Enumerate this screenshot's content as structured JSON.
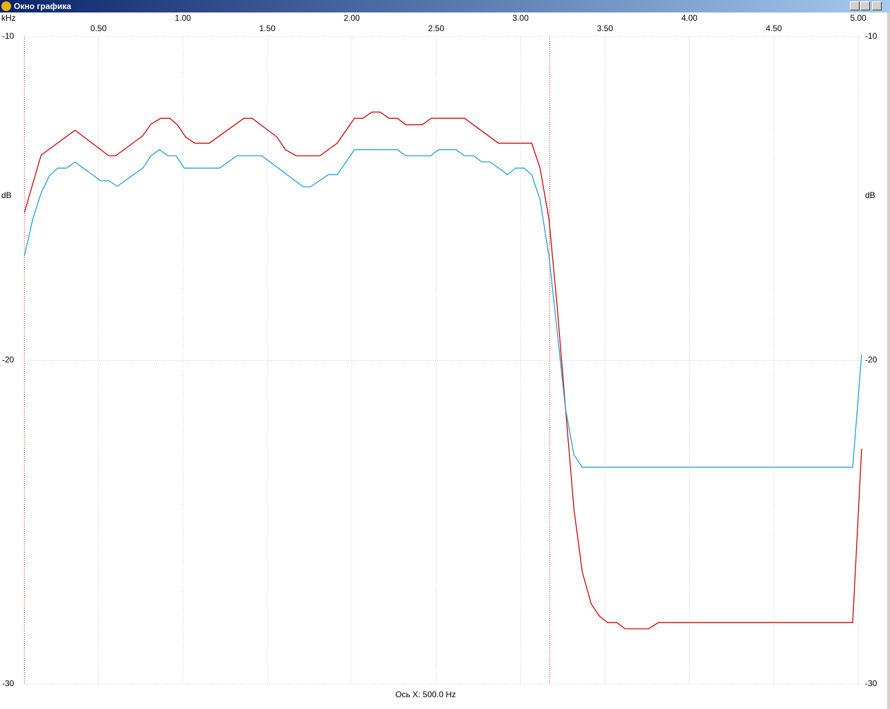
{
  "window": {
    "title": "Окно графика"
  },
  "chart_data": {
    "type": "line",
    "xlabel": "kHz",
    "ylabel": "dB",
    "footer": "Ось X: 500.0 Hz",
    "xlim": [
      0.06,
      5.02
    ],
    "ylim": [
      -30,
      -10
    ],
    "xticks": [
      {
        "value": 0.5,
        "label": "0.50"
      },
      {
        "value": 1.0,
        "label": "1.00"
      },
      {
        "value": 1.5,
        "label": "1.50"
      },
      {
        "value": 2.0,
        "label": "2.00"
      },
      {
        "value": 2.5,
        "label": "2.50"
      },
      {
        "value": 3.0,
        "label": "3.00"
      },
      {
        "value": 3.5,
        "label": "3.50"
      },
      {
        "value": 4.0,
        "label": "4.00"
      },
      {
        "value": 4.5,
        "label": "4.50"
      },
      {
        "value": 5.0,
        "label": "5.00"
      }
    ],
    "yticks": [
      -10,
      -20,
      -30
    ],
    "grid": true,
    "markers": [
      0.061,
      3.172
    ],
    "marker_color": "#e00000",
    "series": [
      {
        "color": "#cc0000",
        "x": [
          0.061,
          0.16,
          0.361,
          0.561,
          0.602,
          0.762,
          0.811,
          0.869,
          0.922,
          0.967,
          1.016,
          1.07,
          1.156,
          1.361,
          1.41,
          1.557,
          1.607,
          1.672,
          1.811,
          1.914,
          2.016,
          2.066,
          2.119,
          2.168,
          2.221,
          2.27,
          2.32,
          2.418,
          2.471,
          2.668,
          2.869,
          3.066,
          3.115,
          3.168,
          3.217,
          3.266,
          3.316,
          3.365,
          3.418,
          3.467,
          3.516,
          3.57,
          3.619,
          3.758,
          3.816,
          4.967,
          5.02
        ],
        "values": [
          -15.43,
          -13.66,
          -12.89,
          -13.68,
          -13.68,
          -13.06,
          -12.7,
          -12.52,
          -12.52,
          -12.72,
          -13.1,
          -13.29,
          -13.29,
          -12.52,
          -12.52,
          -13.1,
          -13.49,
          -13.68,
          -13.68,
          -13.29,
          -12.52,
          -12.52,
          -12.33,
          -12.33,
          -12.52,
          -12.52,
          -12.72,
          -12.72,
          -12.52,
          -12.52,
          -13.29,
          -13.29,
          -14.06,
          -15.63,
          -18.36,
          -21.47,
          -24.59,
          -26.53,
          -27.52,
          -27.9,
          -28.1,
          -28.1,
          -28.29,
          -28.29,
          -28.1,
          -28.1,
          -22.73
        ]
      },
      {
        "color": "#1ea0d8",
        "x": [
          0.061,
          0.111,
          0.16,
          0.209,
          0.258,
          0.311,
          0.361,
          0.41,
          0.512,
          0.561,
          0.611,
          0.762,
          0.811,
          0.861,
          0.91,
          0.959,
          1.008,
          1.217,
          1.32,
          1.467,
          1.713,
          1.754,
          1.861,
          1.914,
          2.016,
          2.27,
          2.32,
          2.467,
          2.516,
          2.619,
          2.668,
          2.721,
          2.77,
          2.82,
          2.922,
          2.971,
          3.02,
          3.066,
          3.115,
          3.168,
          3.217,
          3.266,
          3.316,
          3.365,
          4.967,
          5.02
        ],
        "values": [
          -16.78,
          -15.63,
          -14.83,
          -14.3,
          -14.06,
          -14.06,
          -13.87,
          -14.06,
          -14.45,
          -14.45,
          -14.62,
          -14.06,
          -13.68,
          -13.49,
          -13.68,
          -13.68,
          -14.06,
          -14.06,
          -13.68,
          -13.68,
          -14.64,
          -14.64,
          -14.26,
          -14.26,
          -13.49,
          -13.49,
          -13.68,
          -13.68,
          -13.49,
          -13.49,
          -13.68,
          -13.68,
          -13.87,
          -13.87,
          -14.26,
          -14.06,
          -14.06,
          -14.26,
          -15.03,
          -16.78,
          -19.13,
          -21.49,
          -22.92,
          -23.3,
          -23.3,
          -19.82
        ]
      }
    ]
  }
}
